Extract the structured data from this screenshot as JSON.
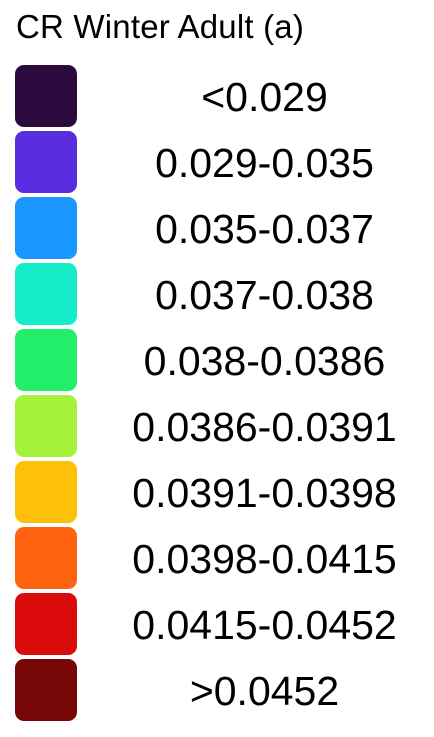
{
  "legend": {
    "title": "CR Winter Adult (a)",
    "items": [
      {
        "label": "<0.029",
        "color": "#2d0a3e"
      },
      {
        "label": "0.029-0.035",
        "color": "#5a2de0"
      },
      {
        "label": "0.035-0.037",
        "color": "#1a96ff"
      },
      {
        "label": "0.037-0.038",
        "color": "#17ecc8"
      },
      {
        "label": "0.038-0.0386",
        "color": "#22ee6a"
      },
      {
        "label": "0.0386-0.0391",
        "color": "#a6f23a"
      },
      {
        "label": "0.0391-0.0398",
        "color": "#ffc00a"
      },
      {
        "label": "0.0398-0.0415",
        "color": "#ff6310"
      },
      {
        "label": "0.0415-0.0452",
        "color": "#dc0b0b"
      },
      {
        "label": ">0.0452",
        "color": "#780707"
      }
    ]
  }
}
